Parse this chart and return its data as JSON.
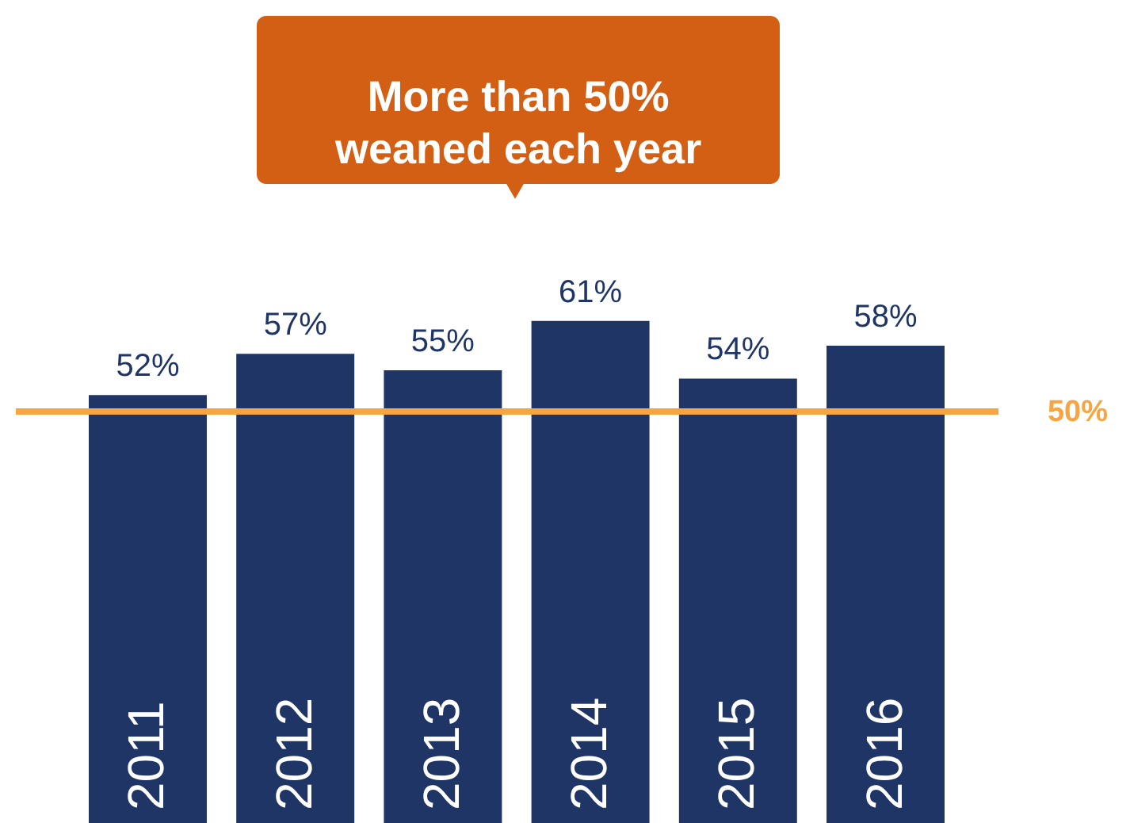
{
  "chart_data": {
    "type": "bar",
    "categories": [
      "2011",
      "2012",
      "2013",
      "2014",
      "2015",
      "2016"
    ],
    "values": [
      52,
      57,
      55,
      61,
      54,
      58
    ],
    "value_labels": [
      "52%",
      "57%",
      "55%",
      "61%",
      "54%",
      "58%"
    ],
    "color": "#1f3566",
    "ylim": [
      0,
      100
    ],
    "ref_lines": [
      {
        "axis": "y",
        "value": 50,
        "label": "50%",
        "color": "#f7a541",
        "line_style": "solid"
      }
    ],
    "annotations": [
      "More than 50%\nweaned each year"
    ]
  }
}
